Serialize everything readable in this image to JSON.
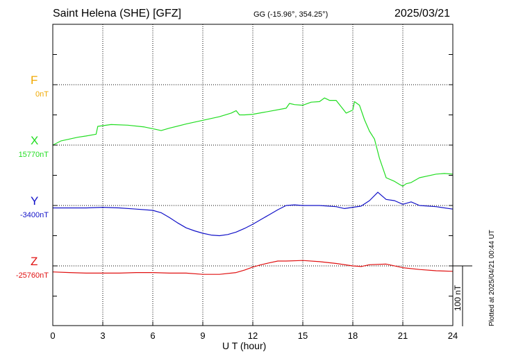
{
  "header": {
    "station": "Saint Helena (SHE)  [GFZ]",
    "coords": "GG (-15.96°, 354.25°)",
    "date": "2025/03/21"
  },
  "footer_note": "Plotted at 2025/04/21 00:44 UT",
  "scale_label": "100 nT",
  "chart_data": {
    "type": "line",
    "title": "Saint Helena (SHE)  [GFZ]",
    "xlabel": "U T (hour)",
    "ylabel": "",
    "xlim": [
      0,
      24
    ],
    "xticks": [
      0,
      3,
      6,
      9,
      12,
      15,
      18,
      21,
      24
    ],
    "grid": true,
    "scale_bar_nT": 100,
    "series": [
      {
        "name": "F",
        "color": "#f0a800",
        "baseline_label": "0nT",
        "x": [],
        "y": []
      },
      {
        "name": "X",
        "color": "#20dd20",
        "baseline_label": "15770nT",
        "x": [
          0,
          0.5,
          1,
          1.5,
          2,
          2.6,
          2.7,
          3.5,
          4.5,
          5.5,
          6.2,
          6.5,
          7,
          8,
          9,
          10,
          10.7,
          11.0,
          11.2,
          11.5,
          12,
          13,
          14,
          14.2,
          14.5,
          15,
          15.5,
          16,
          16.3,
          16.6,
          17,
          17.4,
          17.6,
          18.0,
          18.1,
          18.4,
          18.7,
          19,
          19.3,
          19.6,
          20,
          20.5,
          20.8,
          21,
          21.2,
          21.5,
          22,
          23,
          23.5,
          24
        ],
        "y": [
          15770,
          15777,
          15780,
          15783,
          15785,
          15788,
          15801,
          15804,
          15803,
          15800,
          15796,
          15794,
          15798,
          15805,
          15811,
          15817,
          15823,
          15827,
          15820,
          15820,
          15821,
          15826,
          15831,
          15839,
          15837,
          15836,
          15841,
          15842,
          15848,
          15844,
          15844,
          15830,
          15823,
          15828,
          15842,
          15836,
          15812,
          15793,
          15780,
          15748,
          15716,
          15710,
          15705,
          15702,
          15706,
          15708,
          15716,
          15722,
          15723,
          15722
        ]
      },
      {
        "name": "Y",
        "color": "#1010c8",
        "baseline_label": "-3400nT",
        "x": [
          0,
          1,
          2,
          3,
          4,
          5,
          6,
          6.5,
          7,
          7.5,
          8,
          8.5,
          9,
          9.5,
          10,
          10.5,
          11,
          11.5,
          12,
          12.5,
          13,
          13.5,
          14,
          14.5,
          15,
          16,
          17,
          17.5,
          18,
          18.5,
          19,
          19.5,
          20,
          20.5,
          21,
          21.5,
          22,
          23,
          24
        ],
        "y": [
          -3404,
          -3404,
          -3404,
          -3403,
          -3404,
          -3406,
          -3408,
          -3412,
          -3420,
          -3429,
          -3437,
          -3442,
          -3446,
          -3449,
          -3450,
          -3448,
          -3444,
          -3438,
          -3431,
          -3423,
          -3415,
          -3407,
          -3400,
          -3399,
          -3400,
          -3400,
          -3402,
          -3405,
          -3403,
          -3401,
          -3392,
          -3378,
          -3390,
          -3392,
          -3398,
          -3394,
          -3400,
          -3402,
          -3406
        ]
      },
      {
        "name": "Z",
        "color": "#e01010",
        "baseline_label": "-25760nT",
        "x": [
          0,
          1,
          2,
          3,
          4,
          5,
          6,
          7,
          8,
          9,
          10,
          11,
          11.5,
          12,
          12.5,
          13,
          13.5,
          14,
          15,
          16,
          17,
          18,
          18.5,
          19,
          20,
          21,
          22,
          23,
          24
        ],
        "y": [
          -25770,
          -25771,
          -25772,
          -25772,
          -25772,
          -25771,
          -25771,
          -25772,
          -25772,
          -25774,
          -25774,
          -25771,
          -25767,
          -25762,
          -25758,
          -25755,
          -25752,
          -25752,
          -25751,
          -25753,
          -25756,
          -25760,
          -25761,
          -25758,
          -25757,
          -25763,
          -25766,
          -25768,
          -25769
        ]
      }
    ]
  }
}
